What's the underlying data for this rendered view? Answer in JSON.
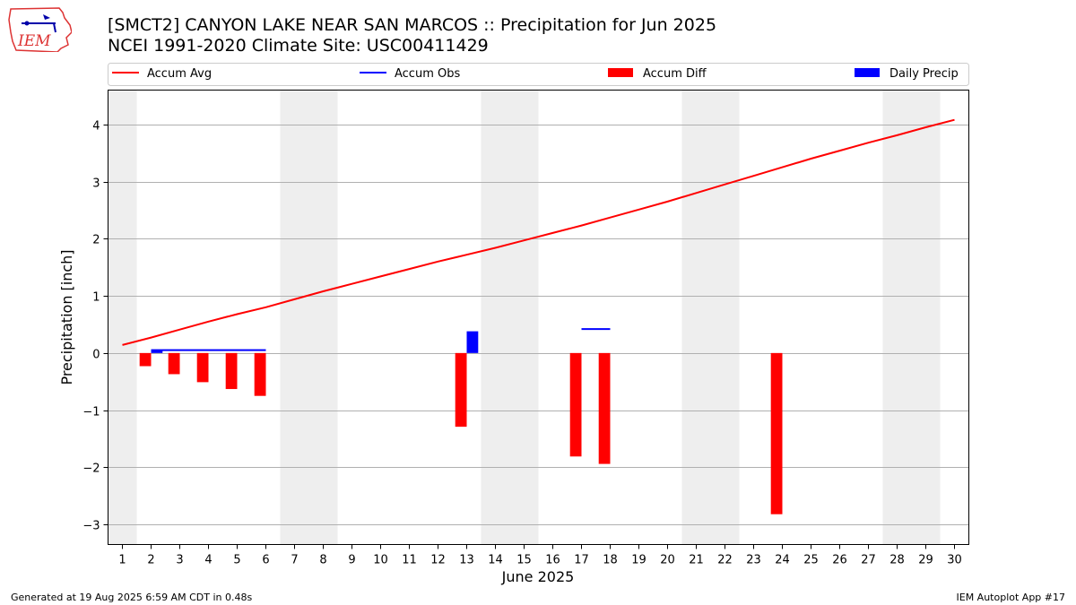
{
  "header": {
    "title_line1": "[SMCT2] CANYON LAKE NEAR SAN MARCOS :: Precipitation for Jun 2025",
    "title_line2": "NCEI 1991-2020 Climate Site: USC00411429"
  },
  "logo": {
    "text": "IEM"
  },
  "footer": {
    "left": "Generated at 19 Aug 2025 6:59 AM CDT in 0.48s",
    "right": "IEM Autoplot App #17"
  },
  "colors": {
    "avg": "#ff0000",
    "obs": "#0000ff",
    "diff": "#ff0000",
    "daily": "#0000ff",
    "weekend": "#eeeeee",
    "grid": "#b0b0b0"
  },
  "chart_data": {
    "type": "bar",
    "xlabel": "June 2025",
    "ylabel": "Precipitation [inch]",
    "xlim": [
      0.5,
      30.5
    ],
    "ylim": [
      -3.35,
      4.6
    ],
    "yticks": [
      -3,
      -2,
      -1,
      0,
      1,
      2,
      3,
      4
    ],
    "ytick_labels": [
      "−3",
      "−2",
      "−1",
      "0",
      "1",
      "2",
      "3",
      "4"
    ],
    "days": [
      1,
      2,
      3,
      4,
      5,
      6,
      7,
      8,
      9,
      10,
      11,
      12,
      13,
      14,
      15,
      16,
      17,
      18,
      19,
      20,
      21,
      22,
      23,
      24,
      25,
      26,
      27,
      28,
      29,
      30
    ],
    "weekend_bands": [
      [
        0.5,
        1.5
      ],
      [
        6.5,
        8.5
      ],
      [
        13.5,
        15.5
      ],
      [
        20.5,
        22.5
      ],
      [
        27.5,
        29.5
      ]
    ],
    "legend": {
      "position": "top",
      "entries": [
        {
          "label": "Accum Avg",
          "kind": "line",
          "color": "#ff0000"
        },
        {
          "label": "Accum Obs",
          "kind": "line",
          "color": "#0000ff"
        },
        {
          "label": "Accum Diff",
          "kind": "patch",
          "color": "#ff0000"
        },
        {
          "label": "Daily Precip",
          "kind": "patch",
          "color": "#0000ff"
        }
      ]
    },
    "series": [
      {
        "name": "Accum Avg",
        "kind": "line",
        "x": [
          1,
          2,
          3,
          4,
          5,
          6,
          7,
          8,
          9,
          10,
          11,
          12,
          13,
          14,
          15,
          16,
          17,
          18,
          19,
          20,
          21,
          22,
          23,
          24,
          25,
          26,
          27,
          28,
          29,
          30
        ],
        "values": [
          0.14,
          0.27,
          0.41,
          0.55,
          0.68,
          0.8,
          0.94,
          1.08,
          1.21,
          1.34,
          1.47,
          1.6,
          1.72,
          1.84,
          1.97,
          2.1,
          2.23,
          2.37,
          2.51,
          2.65,
          2.8,
          2.95,
          3.1,
          3.25,
          3.4,
          3.54,
          3.68,
          3.81,
          3.95,
          4.08
        ]
      },
      {
        "name": "Accum Obs",
        "kind": "step",
        "segments": [
          {
            "x": [
              2,
              6
            ],
            "value": 0.05
          },
          {
            "x": [
              17,
              18
            ],
            "value": 0.42
          }
        ]
      },
      {
        "name": "Accum Diff",
        "kind": "bar",
        "x": [
          1.8,
          2.8,
          3.8,
          4.8,
          5.8,
          12.8,
          16.8,
          17.8,
          23.8
        ],
        "values": [
          -0.23,
          -0.37,
          -0.51,
          -0.63,
          -0.75,
          -1.29,
          -1.81,
          -1.94,
          -2.82
        ]
      },
      {
        "name": "Daily Precip",
        "kind": "bar",
        "x": [
          2.2,
          13.2
        ],
        "values": [
          0.05,
          0.38
        ]
      }
    ]
  }
}
